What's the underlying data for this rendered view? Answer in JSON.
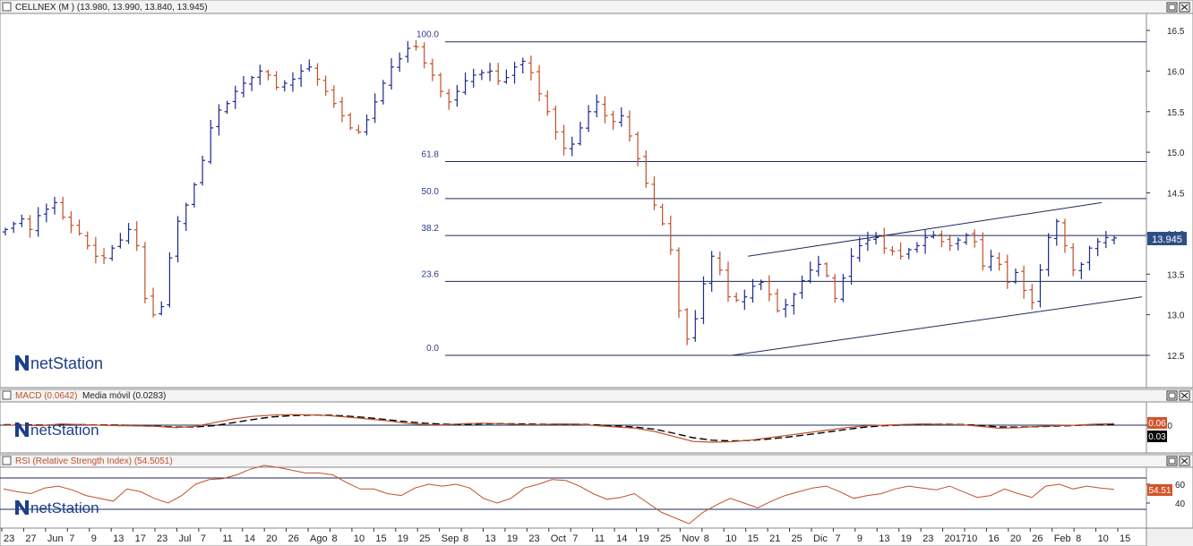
{
  "panels": {
    "price": {
      "title": "CELLNEX (M ) (13.980, 13.990, 13.840, 13.945)",
      "y_ticks": [
        "16.5",
        "16.0",
        "15.5",
        "15.0",
        "14.5",
        "14.0",
        "13.5",
        "13.0",
        "12.5"
      ],
      "last_value": "13.945",
      "watermark": "netStation",
      "fib_labels": [
        "100.0",
        "61.8",
        "50.0",
        "38.2",
        "23.6",
        "0.0"
      ]
    },
    "macd": {
      "title": "MACD (0.0642)",
      "subtitle": "Media móvil (0.0283)",
      "y_ticks": [
        "0.0"
      ],
      "value_macd": "0.06",
      "value_signal": "0.03",
      "watermark": "netStation"
    },
    "rsi": {
      "title": "RSI (Relative Strength Index) (54.5051)",
      "y_ticks": [
        "60",
        "40"
      ],
      "last_value": "54.51",
      "watermark": "netStation"
    }
  },
  "x_axis": {
    "labels": [
      "23",
      "27",
      "Jun",
      "7",
      "9",
      "13",
      "17",
      "23",
      "Jul",
      "7",
      "11",
      "14",
      "20",
      "26",
      "Ago",
      "8",
      "10",
      "15",
      "19",
      "25",
      "Sep",
      "8",
      "13",
      "19",
      "23",
      "Oct",
      "7",
      "11",
      "14",
      "19",
      "25",
      "Nov",
      "8",
      "10",
      "15",
      "21",
      "25",
      "Dic",
      "7",
      "9",
      "13",
      "19",
      "23",
      "2017",
      "10",
      "16",
      "20",
      "26",
      "Feb",
      "8",
      "10",
      "15"
    ]
  },
  "colors": {
    "up": "#1c2a8c",
    "down": "#c0502a",
    "grid": "#1c2a5c",
    "macd": "#c0502a",
    "signal": "#000000",
    "rsi": "#c0502a",
    "badge_blue": "#2e4f86",
    "badge_orange": "#d3542a"
  },
  "chart_data": [
    {
      "type": "ohlc",
      "title": "CELLNEX (M ) (13.980, 13.990, 13.840, 13.945)",
      "ylim": [
        12.45,
        16.6
      ],
      "last": {
        "open": 13.98,
        "high": 13.99,
        "low": 13.84,
        "close": 13.945
      },
      "close_series": [
        14.05,
        14.12,
        14.18,
        14.05,
        14.22,
        14.3,
        14.38,
        14.2,
        14.1,
        14.0,
        13.85,
        13.72,
        13.7,
        13.82,
        13.92,
        14.05,
        13.85,
        13.2,
        13.0,
        13.1,
        13.7,
        14.15,
        14.35,
        14.6,
        14.9,
        15.3,
        15.52,
        15.6,
        15.75,
        15.85,
        15.92,
        16.0,
        15.95,
        15.8,
        15.85,
        15.9,
        16.0,
        16.05,
        15.9,
        15.75,
        15.6,
        15.45,
        15.3,
        15.25,
        15.4,
        15.62,
        15.85,
        16.05,
        16.15,
        16.28,
        16.3,
        16.1,
        15.95,
        15.75,
        15.62,
        15.75,
        15.88,
        15.95,
        15.98,
        16.0,
        15.88,
        15.92,
        16.05,
        16.12,
        15.98,
        15.72,
        15.5,
        15.25,
        15.05,
        15.1,
        15.3,
        15.5,
        15.62,
        15.45,
        15.38,
        15.45,
        15.2,
        14.92,
        14.62,
        14.35,
        14.12,
        13.8,
        13.05,
        12.7,
        12.95,
        13.38,
        13.72,
        13.55,
        13.22,
        13.18,
        13.22,
        13.35,
        13.4,
        13.25,
        13.05,
        13.12,
        13.25,
        13.42,
        13.55,
        13.62,
        13.48,
        13.2,
        13.45,
        13.72,
        13.85,
        13.92,
        13.95,
        13.82,
        13.78,
        13.72,
        13.8,
        13.85,
        13.95,
        13.98,
        13.9,
        13.85,
        13.92,
        13.98,
        13.9,
        13.6,
        13.72,
        13.62,
        13.4,
        13.52,
        13.3,
        13.15,
        13.55,
        13.95,
        14.15,
        13.85,
        13.55,
        13.62,
        13.82,
        13.9,
        13.95,
        13.945
      ],
      "fibonacci": {
        "levels": [
          "100.0",
          "61.8",
          "50.0",
          "38.2",
          "23.6",
          "0.0"
        ],
        "low": 12.5,
        "high": 16.36
      },
      "channel": {
        "upper": [
          [
            13.72,
            14.38
          ]
        ],
        "lower": [
          [
            12.5,
            13.22
          ]
        ]
      }
    },
    {
      "type": "line",
      "title": "MACD (0.0642)",
      "series": [
        {
          "name": "MACD (0.0642)",
          "values": [
            0.0,
            0.0,
            -0.02,
            0.05,
            0.02,
            0.0,
            -0.02,
            -0.03,
            -0.05,
            -0.1,
            -0.05,
            0.1,
            0.25,
            0.35,
            0.4,
            0.42,
            0.41,
            0.38,
            0.32,
            0.25,
            0.18,
            0.08,
            0.02,
            0.01,
            0.06,
            0.08,
            0.06,
            0.03,
            0.02,
            0.05,
            0.04,
            -0.02,
            -0.07,
            -0.12,
            -0.25,
            -0.45,
            -0.65,
            -0.68,
            -0.66,
            -0.6,
            -0.5,
            -0.4,
            -0.3,
            -0.2,
            -0.1,
            -0.03,
            0.0,
            0.03,
            0.05,
            0.03,
            0.02,
            -0.05,
            -0.12,
            -0.1,
            -0.05,
            -0.02,
            0.0,
            0.04,
            0.0642
          ]
        },
        {
          "name": "Media móvil (0.0283)",
          "values": [
            0.02,
            0.02,
            0.0,
            0.01,
            0.02,
            0.01,
            0.0,
            -0.02,
            -0.04,
            -0.08,
            -0.07,
            -0.02,
            0.1,
            0.22,
            0.33,
            0.38,
            0.4,
            0.4,
            0.36,
            0.3,
            0.22,
            0.14,
            0.08,
            0.04,
            0.03,
            0.05,
            0.06,
            0.05,
            0.04,
            0.04,
            0.04,
            0.01,
            -0.03,
            -0.08,
            -0.16,
            -0.32,
            -0.5,
            -0.6,
            -0.63,
            -0.61,
            -0.55,
            -0.47,
            -0.38,
            -0.28,
            -0.17,
            -0.08,
            -0.02,
            0.01,
            0.04,
            0.04,
            0.03,
            -0.01,
            -0.07,
            -0.08,
            -0.06,
            -0.04,
            -0.01,
            0.02,
            0.0283
          ]
        }
      ]
    },
    {
      "type": "line",
      "title": "RSI (Relative Strength Index) (54.5051)",
      "series": [
        {
          "name": "RSI (Relative Strength Index) (54.5051)",
          "values": [
            55,
            52,
            50,
            56,
            58,
            54,
            48,
            45,
            42,
            55,
            52,
            45,
            40,
            48,
            60,
            65,
            66,
            70,
            76,
            80,
            78,
            75,
            72,
            72,
            70,
            62,
            55,
            55,
            50,
            48,
            56,
            60,
            58,
            60,
            56,
            45,
            40,
            45,
            56,
            60,
            65,
            64,
            58,
            50,
            44,
            46,
            50,
            40,
            30,
            24,
            18,
            30,
            38,
            45,
            40,
            35,
            42,
            48,
            52,
            56,
            58,
            52,
            45,
            48,
            50,
            55,
            58,
            56,
            54,
            58,
            52,
            46,
            48,
            55,
            50,
            46,
            58,
            60,
            55,
            58,
            56,
            54.5051
          ]
        }
      ]
    }
  ]
}
